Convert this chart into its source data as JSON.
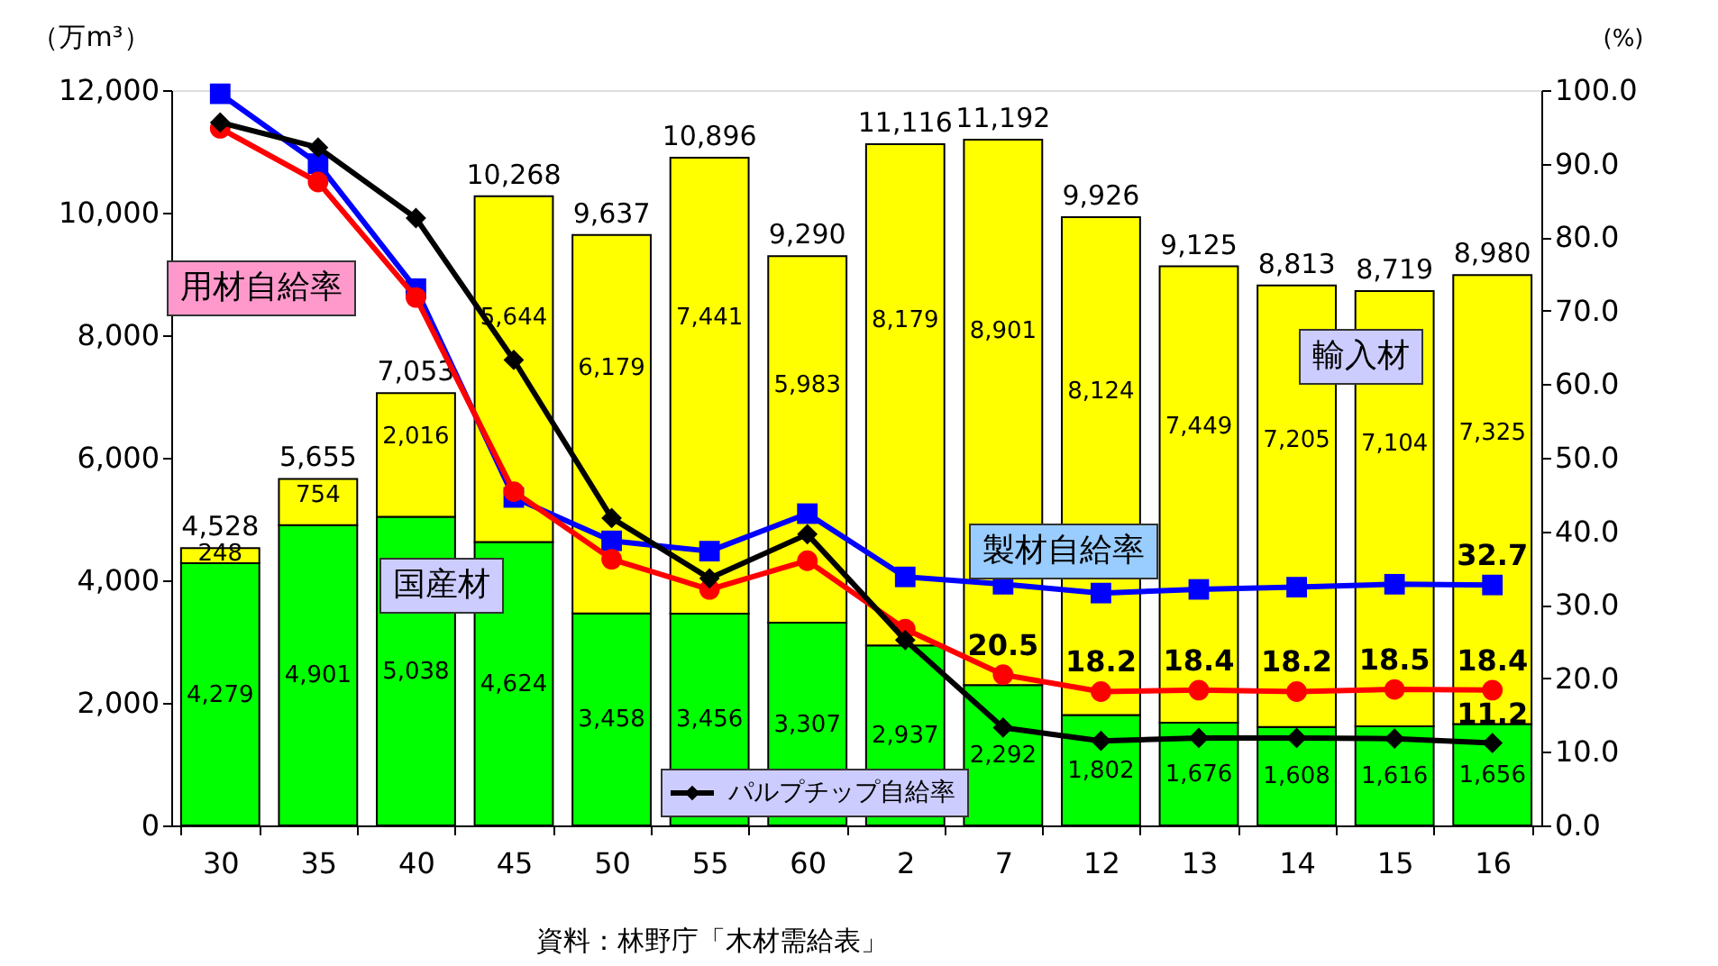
{
  "chart_data": {
    "type": "bar",
    "stacked": true,
    "categories": [
      "30",
      "35",
      "40",
      "45",
      "50",
      "55",
      "60",
      "2",
      "7",
      "12",
      "13",
      "14",
      "15",
      "16"
    ],
    "ylabel": "（万m³）",
    "y2label": "(%)",
    "ylim": [
      0,
      12000
    ],
    "yticks": [
      0,
      {
        "value": 2000,
        "label": "2,000"
      },
      {
        "value": 4000,
        "label": "4,000"
      },
      {
        "value": 6000,
        "label": "6,000"
      },
      {
        "value": 8000,
        "label": "8,000"
      },
      {
        "value": 10000,
        "label": "10,000"
      },
      {
        "value": 12000,
        "label": "12,000"
      }
    ],
    "y2lim": [
      0,
      100
    ],
    "y2ticks": [
      {
        "value": 0,
        "label": "0.0"
      },
      {
        "value": 10,
        "label": "10.0"
      },
      {
        "value": 20,
        "label": "20.0"
      },
      {
        "value": 30,
        "label": "30.0"
      },
      {
        "value": 40,
        "label": "40.0"
      },
      {
        "value": 50,
        "label": "50.0"
      },
      {
        "value": 60,
        "label": "60.0"
      },
      {
        "value": 70,
        "label": "70.0"
      },
      {
        "value": 80,
        "label": "80.0"
      },
      {
        "value": 90,
        "label": "90.0"
      },
      {
        "value": 100,
        "label": "100.0"
      }
    ],
    "grid": false,
    "totals": [
      "4,528",
      "5,655",
      "7,053",
      "10,268",
      "9,637",
      "10,896",
      "9,290",
      "11,116",
      "11,192",
      "9,926",
      "9,125",
      "8,813",
      "8,719",
      "8,980"
    ],
    "series": [
      {
        "name": "国産材",
        "color": "#00ff00",
        "value_labels": [
          "4,279",
          "4,901",
          "5,038",
          "4,624",
          "3,458",
          "3,456",
          "3,307",
          "2,937",
          "2,292",
          "1,802",
          "1,676",
          "1,608",
          "1,616",
          "1,656"
        ],
        "values": [
          4279,
          4901,
          5038,
          4624,
          3458,
          3456,
          3307,
          2937,
          2292,
          1802,
          1676,
          1608,
          1616,
          1656
        ]
      },
      {
        "name": "輸入材",
        "color": "#ffff00",
        "value_labels": [
          "248",
          "754",
          "2,016",
          "5,644",
          "6,179",
          "7,441",
          "5,983",
          "8,179",
          "8,901",
          "8,124",
          "7,449",
          "7,205",
          "7,104",
          "7,325"
        ],
        "values": [
          248,
          754,
          2016,
          5644,
          6179,
          7441,
          5983,
          8179,
          8901,
          8124,
          7449,
          7205,
          7104,
          7325
        ]
      },
      {
        "name": "製材自給率",
        "type": "line",
        "axis": "y2",
        "color": "#0000ff",
        "marker": "square",
        "values": [
          99.5,
          90,
          73,
          44.6,
          38.7,
          37.3,
          42.4,
          33.8,
          32.8,
          31.6,
          32.1,
          32.4,
          32.8,
          32.7
        ],
        "value_labels": [
          null,
          null,
          null,
          null,
          null,
          null,
          null,
          null,
          null,
          null,
          null,
          null,
          null,
          "32.7"
        ]
      },
      {
        "name": "用材自給率",
        "type": "line",
        "axis": "y2",
        "color": "#ff0000",
        "marker": "circle",
        "values": [
          94.8,
          87.5,
          71.8,
          45.4,
          36.2,
          32.1,
          36,
          26.7,
          20.5,
          18.2,
          18.4,
          18.2,
          18.5,
          18.4
        ],
        "value_labels": [
          null,
          null,
          null,
          null,
          null,
          null,
          null,
          null,
          "20.5",
          "18.2",
          "18.4",
          "18.2",
          "18.5",
          "18.4"
        ]
      },
      {
        "name": "パルプチップ自給率",
        "type": "line",
        "axis": "y2",
        "color": "#000000",
        "marker": "diamond",
        "values": [
          95.6,
          92.2,
          82.6,
          63.3,
          41.8,
          33.6,
          39.6,
          25.2,
          13.3,
          11.5,
          11.9,
          11.9,
          11.8,
          11.2
        ],
        "value_labels": [
          null,
          null,
          null,
          null,
          null,
          null,
          null,
          null,
          null,
          null,
          null,
          null,
          null,
          "11.2"
        ]
      }
    ],
    "annotations": [
      "資料：林野庁「木材需給表」"
    ]
  }
}
